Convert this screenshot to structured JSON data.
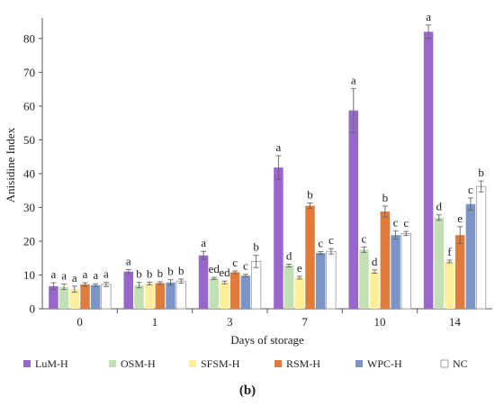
{
  "chart_data": {
    "type": "bar",
    "categories": [
      "0",
      "1",
      "3",
      "7",
      "10",
      "14"
    ],
    "xlabel": "Days of storage",
    "ylabel": "Anisidine Index",
    "ylim": [
      0,
      85
    ],
    "yticks": [
      0,
      10,
      20,
      30,
      40,
      50,
      60,
      70,
      80
    ],
    "grid": false,
    "legend_position": "bottom",
    "panel_label": "(b)",
    "series": [
      {
        "name": "LuM-H",
        "color": "#9966cc",
        "values": [
          6.7,
          11.0,
          15.8,
          41.8,
          58.7,
          82.0
        ],
        "errors": [
          1.0,
          0.6,
          1.2,
          3.5,
          6.5,
          2.0
        ],
        "letters": [
          "a",
          "a",
          "a",
          "a",
          "a",
          "a"
        ]
      },
      {
        "name": "OSM-H",
        "color": "#c3e0b4",
        "values": [
          6.5,
          7.0,
          9.0,
          12.8,
          17.5,
          27.0
        ],
        "errors": [
          0.8,
          0.8,
          0.3,
          0.4,
          0.8,
          0.8
        ],
        "letters": [
          "a",
          "b",
          "ed",
          "d",
          "c",
          "d"
        ]
      },
      {
        "name": "SFSM-H",
        "color": "#ffee99",
        "values": [
          5.8,
          7.5,
          7.8,
          9.2,
          11.0,
          14.0
        ],
        "errors": [
          0.9,
          0.4,
          0.4,
          0.4,
          0.5,
          0.4
        ],
        "letters": [
          "a",
          "b",
          "ed",
          "e",
          "d",
          "f"
        ]
      },
      {
        "name": "RSM-H",
        "color": "#e07b3c",
        "values": [
          7.2,
          7.6,
          10.8,
          30.5,
          28.8,
          21.8
        ],
        "errors": [
          0.5,
          0.4,
          0.4,
          0.8,
          1.6,
          2.5
        ],
        "letters": [
          "a",
          "b",
          "c",
          "b",
          "b",
          "e"
        ]
      },
      {
        "name": "WPC-H",
        "color": "#7a96c8",
        "values": [
          7.0,
          7.8,
          9.8,
          16.5,
          21.8,
          31.0
        ],
        "errors": [
          0.4,
          0.8,
          0.4,
          0.4,
          1.2,
          1.8
        ],
        "letters": [
          "a",
          "b",
          "c",
          "c",
          "c",
          "c"
        ]
      },
      {
        "name": "NC",
        "color": "#ffffff",
        "values": [
          7.2,
          8.2,
          14.0,
          17.0,
          22.3,
          36.2
        ],
        "errors": [
          0.6,
          0.6,
          1.8,
          0.8,
          0.6,
          1.6
        ],
        "letters": [
          "a",
          "b",
          "b",
          "c",
          "c",
          "b"
        ]
      }
    ]
  }
}
